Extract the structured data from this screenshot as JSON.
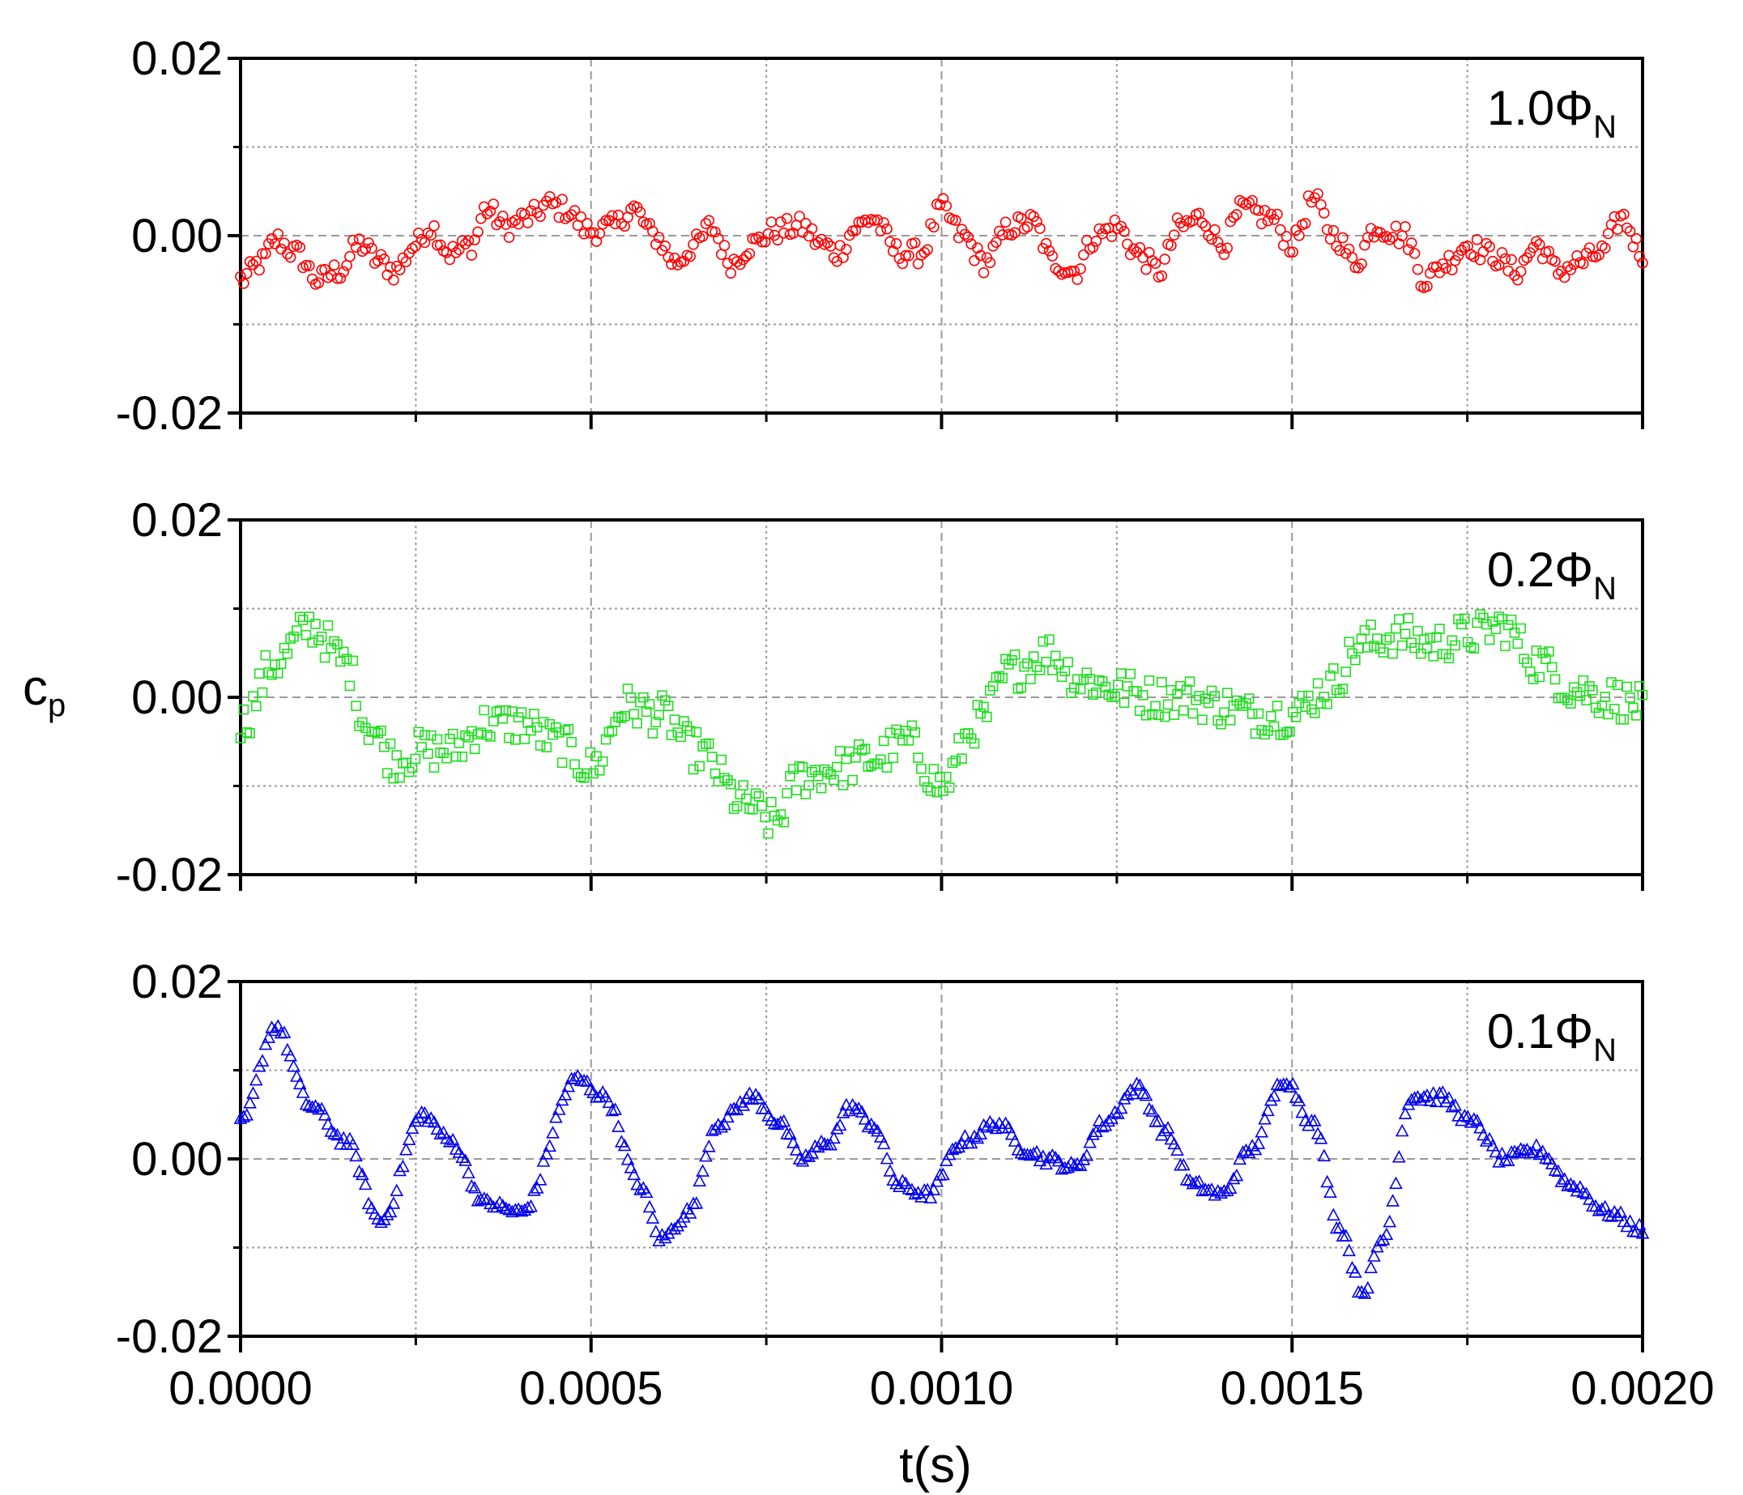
{
  "chart_data": {
    "type": "scatter",
    "xlabel": "t(s)",
    "ylabel": {
      "main": "c",
      "subscript": "p"
    },
    "xlim": [
      0,
      0.002
    ],
    "x_ticks": [
      "0.0000",
      "0.0005",
      "0.0010",
      "0.0015",
      "0.0020"
    ],
    "x_tick_values": [
      0,
      0.0005,
      0.001,
      0.0015,
      0.002
    ],
    "ylim": [
      -0.02,
      0.02
    ],
    "y_ticks": [
      "0.02",
      "0.00",
      "-0.02"
    ],
    "y_tick_values": [
      0.02,
      0.0,
      -0.02
    ],
    "grid": true,
    "panels": [
      {
        "label_main": "1.0Φ",
        "label_sub": "N",
        "marker": "circle",
        "color": "#ff0000",
        "points_count": 450,
        "knots": [
          [
            0,
            -0.005
          ],
          [
            3e-05,
            -0.003
          ],
          [
            5e-05,
            -0.0005
          ],
          [
            8e-05,
            -0.002
          ],
          [
            0.00011,
            -0.005
          ],
          [
            0.00014,
            -0.004
          ],
          [
            0.00017,
            -0.001
          ],
          [
            0.0002,
            -0.003
          ],
          [
            0.00022,
            -0.004
          ],
          [
            0.00025,
            -0.001
          ],
          [
            0.00027,
            0.001
          ],
          [
            0.0003,
            -0.002
          ],
          [
            0.00033,
            -0.001
          ],
          [
            0.00035,
            0.003
          ],
          [
            0.00038,
            0.001
          ],
          [
            0.00041,
            0.002
          ],
          [
            0.00044,
            0.0035
          ],
          [
            0.00046,
            0.003
          ],
          [
            0.0005,
            0.0005
          ],
          [
            0.00053,
            0.001
          ],
          [
            0.00056,
            0.003
          ],
          [
            0.00059,
            0.0
          ],
          [
            0.00062,
            -0.003
          ],
          [
            0.00065,
            -0.001
          ],
          [
            0.00067,
            0.001
          ],
          [
            0.0007,
            -0.003
          ],
          [
            0.00073,
            -0.001
          ],
          [
            0.00076,
            0.0005
          ],
          [
            0.0008,
            0.001
          ],
          [
            0.00083,
            -0.001
          ],
          [
            0.00085,
            -0.002
          ],
          [
            0.00088,
            0.001
          ],
          [
            0.0009,
            0.002
          ],
          [
            0.00094,
            -0.002
          ],
          [
            0.00097,
            -0.002
          ],
          [
            0.001,
            0.003
          ],
          [
            0.00103,
            0.0
          ],
          [
            0.00106,
            -0.003
          ],
          [
            0.0011,
            0.001
          ],
          [
            0.00113,
            0.0015
          ],
          [
            0.00116,
            -0.003
          ],
          [
            0.00119,
            -0.004
          ],
          [
            0.00122,
            0.0
          ],
          [
            0.00125,
            0.001
          ],
          [
            0.00128,
            -0.002
          ],
          [
            0.00131,
            -0.004
          ],
          [
            0.00134,
            0.001
          ],
          [
            0.00137,
            0.002
          ],
          [
            0.0014,
            -0.001
          ],
          [
            0.00143,
            0.003
          ],
          [
            0.00147,
            0.002
          ],
          [
            0.0015,
            -0.001
          ],
          [
            0.00153,
            0.004
          ],
          [
            0.00156,
            0.0
          ],
          [
            0.00159,
            -0.003
          ],
          [
            0.00162,
            0.001
          ],
          [
            0.00166,
            0.0
          ],
          [
            0.00169,
            -0.005
          ],
          [
            0.00172,
            -0.003
          ],
          [
            0.00175,
            -0.001
          ],
          [
            0.00178,
            -0.002
          ],
          [
            0.00182,
            -0.004
          ],
          [
            0.00185,
            -0.001
          ],
          [
            0.00188,
            -0.004
          ],
          [
            0.00191,
            -0.003
          ],
          [
            0.00194,
            -0.002
          ],
          [
            0.00197,
            0.002
          ],
          [
            0.002,
            -0.002
          ]
        ]
      },
      {
        "label_main": "0.2Φ",
        "label_sub": "N",
        "marker": "square",
        "color": "#22dd22",
        "points_count": 450,
        "knots": [
          [
            0,
            -0.003
          ],
          [
            5e-05,
            0.004
          ],
          [
            0.0001,
            0.008
          ],
          [
            0.00015,
            0.004
          ],
          [
            0.00018,
            -0.003
          ],
          [
            0.00022,
            -0.007
          ],
          [
            0.00026,
            -0.006
          ],
          [
            0.0003,
            -0.006
          ],
          [
            0.00035,
            -0.003
          ],
          [
            0.0004,
            -0.003
          ],
          [
            0.00045,
            -0.005
          ],
          [
            0.0005,
            -0.008
          ],
          [
            0.00055,
            -0.001
          ],
          [
            0.0006,
            -0.002
          ],
          [
            0.00065,
            -0.006
          ],
          [
            0.00072,
            -0.012
          ],
          [
            0.00076,
            -0.014
          ],
          [
            0.0008,
            -0.009
          ],
          [
            0.00085,
            -0.008
          ],
          [
            0.0009,
            -0.007
          ],
          [
            0.00095,
            -0.005
          ],
          [
            0.001,
            -0.01
          ],
          [
            0.00105,
            -0.003
          ],
          [
            0.0011,
            0.003
          ],
          [
            0.00115,
            0.005
          ],
          [
            0.0012,
            0.002
          ],
          [
            0.00125,
            0.001
          ],
          [
            0.0013,
            0.0
          ],
          [
            0.00135,
            0.0
          ],
          [
            0.0014,
            -0.001
          ],
          [
            0.00145,
            -0.002
          ],
          [
            0.0015,
            -0.002
          ],
          [
            0.00155,
            0.001
          ],
          [
            0.0016,
            0.006
          ],
          [
            0.00165,
            0.007
          ],
          [
            0.0017,
            0.006
          ],
          [
            0.00175,
            0.007
          ],
          [
            0.0018,
            0.008
          ],
          [
            0.00185,
            0.004
          ],
          [
            0.0019,
            0.001
          ],
          [
            0.00195,
            0.0
          ],
          [
            0.002,
            -0.001
          ]
        ]
      },
      {
        "label_main": "0.1Φ",
        "label_sub": "N",
        "marker": "triangle",
        "color": "#0000ee",
        "points_count": 450,
        "knots": [
          [
            0,
            0.004
          ],
          [
            5e-05,
            0.015
          ],
          [
            0.0001,
            0.006
          ],
          [
            0.00015,
            0.002
          ],
          [
            0.0002,
            -0.007
          ],
          [
            0.00026,
            0.005
          ],
          [
            0.0003,
            0.002
          ],
          [
            0.00035,
            -0.005
          ],
          [
            0.0004,
            -0.006
          ],
          [
            0.00048,
            0.009
          ],
          [
            0.00052,
            0.007
          ],
          [
            0.00057,
            -0.003
          ],
          [
            0.0006,
            -0.009
          ],
          [
            0.00064,
            -0.006
          ],
          [
            0.00068,
            0.004
          ],
          [
            0.00073,
            0.007
          ],
          [
            0.00077,
            0.004
          ],
          [
            0.0008,
            0.0
          ],
          [
            0.00084,
            0.002
          ],
          [
            0.00087,
            0.006
          ],
          [
            0.0009,
            0.004
          ],
          [
            0.00094,
            -0.003
          ],
          [
            0.00098,
            -0.004
          ],
          [
            0.00103,
            0.002
          ],
          [
            0.00108,
            0.004
          ],
          [
            0.00112,
            0.001
          ],
          [
            0.00115,
            0.0
          ],
          [
            0.00119,
            -0.001
          ],
          [
            0.00123,
            0.004
          ],
          [
            0.00128,
            0.008
          ],
          [
            0.00132,
            0.003
          ],
          [
            0.00136,
            -0.003
          ],
          [
            0.0014,
            -0.004
          ],
          [
            0.00144,
            0.001
          ],
          [
            0.00149,
            0.009
          ],
          [
            0.00153,
            0.004
          ],
          [
            0.00157,
            -0.008
          ],
          [
            0.0016,
            -0.015
          ],
          [
            0.00163,
            -0.009
          ],
          [
            0.00167,
            0.007
          ],
          [
            0.00171,
            0.007
          ],
          [
            0.00176,
            0.004
          ],
          [
            0.0018,
            0.0
          ],
          [
            0.00185,
            0.001
          ],
          [
            0.0019,
            -0.003
          ],
          [
            0.00195,
            -0.006
          ],
          [
            0.002,
            -0.008
          ]
        ]
      }
    ]
  }
}
